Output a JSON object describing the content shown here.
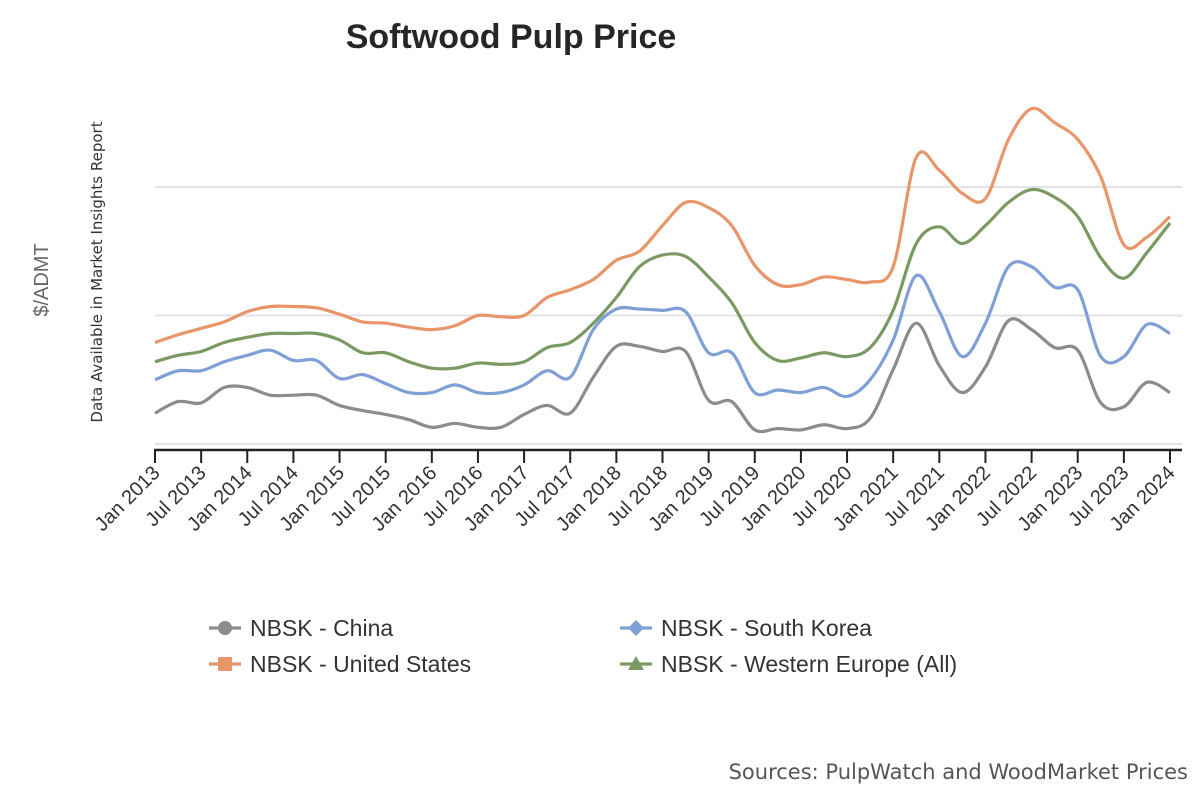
{
  "chart_data": {
    "type": "line",
    "title": "Softwood Pulp Price",
    "ylabel": "$/ADMT",
    "ylabel_note": "Data Available in Market Insights Report",
    "source": "Sources: PulpWatch and WoodMarket Prices",
    "y_tick_labels_shown": false,
    "y_units_note": "relative scale; unlabeled gridlines at 0, 1, 2",
    "ylim": [
      0,
      2.7
    ],
    "grid": true,
    "legend_position": "bottom",
    "x_tick_labels": [
      "Jan 2013",
      "Jul 2013",
      "Jan 2014",
      "Jul 2014",
      "Jan 2015",
      "Jul 2015",
      "Jan 2016",
      "Jul 2016",
      "Jan 2017",
      "Jul 2017",
      "Jan 2018",
      "Jul 2018",
      "Jan 2019",
      "Jul 2019",
      "Jan 2020",
      "Jul 2020",
      "Jan 2021",
      "Jul 2021",
      "Jan 2022",
      "Jul 2022",
      "Jan 2023",
      "Jul 2023",
      "Jan 2024"
    ],
    "x": [
      "2013-01",
      "2013-04",
      "2013-07",
      "2013-10",
      "2014-01",
      "2014-04",
      "2014-07",
      "2014-10",
      "2015-01",
      "2015-04",
      "2015-07",
      "2015-10",
      "2016-01",
      "2016-04",
      "2016-07",
      "2016-10",
      "2017-01",
      "2017-04",
      "2017-07",
      "2017-10",
      "2018-01",
      "2018-04",
      "2018-07",
      "2018-10",
      "2019-01",
      "2019-04",
      "2019-07",
      "2019-10",
      "2020-01",
      "2020-04",
      "2020-07",
      "2020-10",
      "2021-01",
      "2021-04",
      "2021-07",
      "2021-10",
      "2022-01",
      "2022-04",
      "2022-07",
      "2022-10",
      "2023-01",
      "2023-04",
      "2023-07",
      "2023-10",
      "2024-01"
    ],
    "series": [
      {
        "name": "NBSK - China",
        "color": "#8c8c8c",
        "marker": "circle",
        "values": [
          0.24,
          0.33,
          0.32,
          0.44,
          0.44,
          0.38,
          0.38,
          0.38,
          0.3,
          0.26,
          0.23,
          0.19,
          0.13,
          0.16,
          0.13,
          0.13,
          0.23,
          0.3,
          0.24,
          0.52,
          0.76,
          0.76,
          0.72,
          0.72,
          0.34,
          0.33,
          0.11,
          0.12,
          0.11,
          0.15,
          0.12,
          0.2,
          0.58,
          0.94,
          0.61,
          0.4,
          0.6,
          0.96,
          0.89,
          0.75,
          0.73,
          0.32,
          0.29,
          0.48,
          0.4
        ]
      },
      {
        "name": "NBSK - South Korea",
        "color": "#7f9fd6",
        "marker": "diamond",
        "values": [
          0.5,
          0.57,
          0.57,
          0.64,
          0.69,
          0.73,
          0.65,
          0.65,
          0.51,
          0.54,
          0.47,
          0.4,
          0.4,
          0.46,
          0.4,
          0.4,
          0.46,
          0.57,
          0.52,
          0.89,
          1.05,
          1.05,
          1.04,
          1.03,
          0.71,
          0.71,
          0.4,
          0.42,
          0.4,
          0.44,
          0.37,
          0.5,
          0.81,
          1.31,
          1.03,
          0.68,
          0.94,
          1.38,
          1.38,
          1.22,
          1.2,
          0.68,
          0.68,
          0.93,
          0.86
        ]
      },
      {
        "name": "NBSK - United States",
        "color": "#e8956a",
        "marker": "square",
        "values": [
          0.79,
          0.85,
          0.9,
          0.95,
          1.03,
          1.07,
          1.07,
          1.06,
          1.01,
          0.95,
          0.94,
          0.91,
          0.89,
          0.92,
          1.0,
          0.99,
          1.0,
          1.14,
          1.2,
          1.28,
          1.43,
          1.5,
          1.7,
          1.88,
          1.84,
          1.7,
          1.39,
          1.24,
          1.24,
          1.3,
          1.28,
          1.26,
          1.38,
          2.23,
          2.13,
          1.95,
          1.91,
          2.37,
          2.61,
          2.5,
          2.37,
          2.08,
          1.55,
          1.61,
          1.77
        ]
      },
      {
        "name": "NBSK - Western Europe (All)",
        "color": "#7b9a63",
        "marker": "triangle",
        "values": [
          0.64,
          0.69,
          0.72,
          0.79,
          0.83,
          0.86,
          0.86,
          0.86,
          0.81,
          0.71,
          0.71,
          0.64,
          0.59,
          0.59,
          0.63,
          0.62,
          0.64,
          0.75,
          0.79,
          0.94,
          1.14,
          1.38,
          1.47,
          1.46,
          1.3,
          1.1,
          0.79,
          0.65,
          0.67,
          0.71,
          0.68,
          0.75,
          1.04,
          1.56,
          1.69,
          1.56,
          1.7,
          1.88,
          1.98,
          1.92,
          1.77,
          1.45,
          1.29,
          1.49,
          1.72
        ]
      }
    ]
  }
}
